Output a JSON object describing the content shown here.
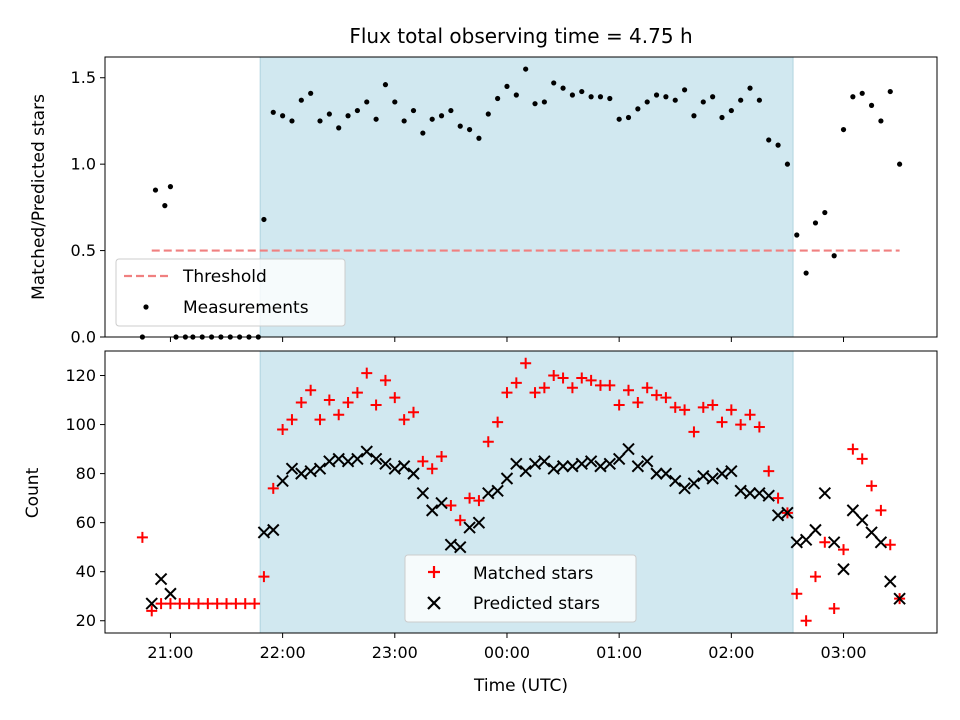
{
  "chart_data": [
    {
      "type": "scatter",
      "title": "Flux total observing time = 4.75 h",
      "ylabel": "Matched/Predicted stars",
      "xlabel": "",
      "ylim": [
        0,
        1.62
      ],
      "yticks": [
        0.0,
        0.5,
        1.0,
        1.5
      ],
      "ytick_labels": [
        "0.0",
        "0.5",
        "1.0",
        "1.5"
      ],
      "xlim": [
        "20:25",
        "03:50"
      ],
      "xticks": [
        "21:00",
        "22:00",
        "23:00",
        "00:00",
        "01:00",
        "02:00",
        "03:00"
      ],
      "shaded_interval": [
        "21:48",
        "02:33"
      ],
      "shade_color": "#d1e8f0",
      "threshold": {
        "name": "Threshold",
        "y": 0.5,
        "x_start": "20:50",
        "x_end": "03:30",
        "color": "#f08080"
      },
      "legend": {
        "position": "lower left",
        "entries": [
          "Threshold",
          "Measurements"
        ]
      },
      "series": [
        {
          "name": "Measurements",
          "color": "#000000",
          "marker": "dot",
          "points": [
            [
              "20:45",
              0.0
            ],
            [
              "20:52",
              0.85
            ],
            [
              "20:57",
              0.76
            ],
            [
              "21:00",
              0.87
            ],
            [
              "21:03",
              0.0
            ],
            [
              "21:08",
              0.0
            ],
            [
              "21:12",
              0.0
            ],
            [
              "21:17",
              0.0
            ],
            [
              "21:22",
              0.0
            ],
            [
              "21:27",
              0.0
            ],
            [
              "21:32",
              0.0
            ],
            [
              "21:37",
              0.0
            ],
            [
              "21:42",
              0.0
            ],
            [
              "21:47",
              0.0
            ],
            [
              "21:50",
              0.68
            ],
            [
              "21:55",
              1.3
            ],
            [
              "22:00",
              1.28
            ],
            [
              "22:05",
              1.25
            ],
            [
              "22:10",
              1.37
            ],
            [
              "22:15",
              1.41
            ],
            [
              "22:20",
              1.25
            ],
            [
              "22:25",
              1.29
            ],
            [
              "22:30",
              1.21
            ],
            [
              "22:35",
              1.28
            ],
            [
              "22:40",
              1.31
            ],
            [
              "22:45",
              1.36
            ],
            [
              "22:50",
              1.26
            ],
            [
              "22:55",
              1.46
            ],
            [
              "23:00",
              1.36
            ],
            [
              "23:05",
              1.25
            ],
            [
              "23:10",
              1.31
            ],
            [
              "23:15",
              1.18
            ],
            [
              "23:20",
              1.26
            ],
            [
              "23:25",
              1.28
            ],
            [
              "23:30",
              1.31
            ],
            [
              "23:35",
              1.22
            ],
            [
              "23:40",
              1.2
            ],
            [
              "23:45",
              1.15
            ],
            [
              "23:50",
              1.29
            ],
            [
              "23:55",
              1.38
            ],
            [
              "00:00",
              1.45
            ],
            [
              "00:05",
              1.4
            ],
            [
              "00:10",
              1.55
            ],
            [
              "00:15",
              1.35
            ],
            [
              "00:20",
              1.36
            ],
            [
              "00:25",
              1.47
            ],
            [
              "00:30",
              1.44
            ],
            [
              "00:35",
              1.4
            ],
            [
              "00:40",
              1.42
            ],
            [
              "00:45",
              1.39
            ],
            [
              "00:50",
              1.39
            ],
            [
              "00:55",
              1.38
            ],
            [
              "01:00",
              1.26
            ],
            [
              "01:05",
              1.27
            ],
            [
              "01:10",
              1.32
            ],
            [
              "01:15",
              1.36
            ],
            [
              "01:20",
              1.4
            ],
            [
              "01:25",
              1.39
            ],
            [
              "01:30",
              1.37
            ],
            [
              "01:35",
              1.43
            ],
            [
              "01:40",
              1.28
            ],
            [
              "01:45",
              1.36
            ],
            [
              "01:50",
              1.39
            ],
            [
              "01:55",
              1.27
            ],
            [
              "02:00",
              1.31
            ],
            [
              "02:05",
              1.37
            ],
            [
              "02:10",
              1.44
            ],
            [
              "02:15",
              1.37
            ],
            [
              "02:20",
              1.14
            ],
            [
              "02:25",
              1.11
            ],
            [
              "02:30",
              1.0
            ],
            [
              "02:35",
              0.59
            ],
            [
              "02:40",
              0.37
            ],
            [
              "02:45",
              0.66
            ],
            [
              "02:50",
              0.72
            ],
            [
              "02:55",
              0.47
            ],
            [
              "03:00",
              1.2
            ],
            [
              "03:05",
              1.39
            ],
            [
              "03:10",
              1.41
            ],
            [
              "03:15",
              1.34
            ],
            [
              "03:20",
              1.25
            ],
            [
              "03:25",
              1.42
            ],
            [
              "03:30",
              1.0
            ]
          ]
        }
      ]
    },
    {
      "type": "scatter",
      "title": "",
      "ylabel": "Count",
      "xlabel": "Time (UTC)",
      "ylim": [
        15,
        130
      ],
      "yticks": [
        20,
        40,
        60,
        80,
        100,
        120
      ],
      "ytick_labels": [
        "20",
        "40",
        "60",
        "80",
        "100",
        "120"
      ],
      "xlim": [
        "20:25",
        "03:50"
      ],
      "xticks": [
        "21:00",
        "22:00",
        "23:00",
        "00:00",
        "01:00",
        "02:00",
        "03:00"
      ],
      "xtick_labels": [
        "21:00",
        "22:00",
        "23:00",
        "00:00",
        "01:00",
        "02:00",
        "03:00"
      ],
      "shaded_interval": [
        "21:48",
        "02:33"
      ],
      "shade_color": "#d1e8f0",
      "legend": {
        "position": "lower center",
        "entries": [
          "Matched stars",
          "Predicted stars"
        ]
      },
      "series": [
        {
          "name": "Matched stars",
          "color": "#ff0000",
          "marker": "plus",
          "points": [
            [
              "20:45",
              54
            ],
            [
              "20:50",
              24
            ],
            [
              "20:55",
              27
            ],
            [
              "21:00",
              27
            ],
            [
              "21:05",
              27
            ],
            [
              "21:10",
              27
            ],
            [
              "21:15",
              27
            ],
            [
              "21:20",
              27
            ],
            [
              "21:25",
              27
            ],
            [
              "21:30",
              27
            ],
            [
              "21:35",
              27
            ],
            [
              "21:40",
              27
            ],
            [
              "21:45",
              27
            ],
            [
              "21:50",
              38
            ],
            [
              "21:55",
              74
            ],
            [
              "22:00",
              98
            ],
            [
              "22:05",
              102
            ],
            [
              "22:10",
              109
            ],
            [
              "22:15",
              114
            ],
            [
              "22:20",
              102
            ],
            [
              "22:25",
              110
            ],
            [
              "22:30",
              104
            ],
            [
              "22:35",
              109
            ],
            [
              "22:40",
              113
            ],
            [
              "22:45",
              121
            ],
            [
              "22:50",
              108
            ],
            [
              "22:55",
              118
            ],
            [
              "23:00",
              111
            ],
            [
              "23:05",
              102
            ],
            [
              "23:10",
              105
            ],
            [
              "23:15",
              85
            ],
            [
              "23:20",
              82
            ],
            [
              "23:25",
              87
            ],
            [
              "23:30",
              67
            ],
            [
              "23:35",
              61
            ],
            [
              "23:40",
              70
            ],
            [
              "23:45",
              69
            ],
            [
              "23:50",
              93
            ],
            [
              "23:55",
              101
            ],
            [
              "00:00",
              113
            ],
            [
              "00:05",
              117
            ],
            [
              "00:10",
              125
            ],
            [
              "00:15",
              113
            ],
            [
              "00:20",
              115
            ],
            [
              "00:25",
              120
            ],
            [
              "00:30",
              119
            ],
            [
              "00:35",
              115
            ],
            [
              "00:40",
              119
            ],
            [
              "00:45",
              118
            ],
            [
              "00:50",
              116
            ],
            [
              "00:55",
              116
            ],
            [
              "01:00",
              108
            ],
            [
              "01:05",
              114
            ],
            [
              "01:10",
              109
            ],
            [
              "01:15",
              115
            ],
            [
              "01:20",
              112
            ],
            [
              "01:25",
              111
            ],
            [
              "01:30",
              107
            ],
            [
              "01:35",
              106
            ],
            [
              "01:40",
              97
            ],
            [
              "01:45",
              107
            ],
            [
              "01:50",
              108
            ],
            [
              "01:55",
              101
            ],
            [
              "02:00",
              106
            ],
            [
              "02:05",
              100
            ],
            [
              "02:10",
              104
            ],
            [
              "02:15",
              99
            ],
            [
              "02:20",
              81
            ],
            [
              "02:25",
              70
            ],
            [
              "02:30",
              64
            ],
            [
              "02:35",
              31
            ],
            [
              "02:40",
              20
            ],
            [
              "02:45",
              38
            ],
            [
              "02:50",
              52
            ],
            [
              "02:55",
              25
            ],
            [
              "03:00",
              49
            ],
            [
              "03:05",
              90
            ],
            [
              "03:10",
              86
            ],
            [
              "03:15",
              75
            ],
            [
              "03:20",
              65
            ],
            [
              "03:25",
              51
            ],
            [
              "03:30",
              29
            ]
          ]
        },
        {
          "name": "Predicted stars",
          "color": "#000000",
          "marker": "x",
          "points": [
            [
              "20:50",
              27
            ],
            [
              "20:55",
              37
            ],
            [
              "21:00",
              31
            ],
            [
              "21:50",
              56
            ],
            [
              "21:55",
              57
            ],
            [
              "22:00",
              77
            ],
            [
              "22:05",
              82
            ],
            [
              "22:10",
              80
            ],
            [
              "22:15",
              81
            ],
            [
              "22:20",
              82
            ],
            [
              "22:25",
              85
            ],
            [
              "22:30",
              86
            ],
            [
              "22:35",
              85
            ],
            [
              "22:40",
              86
            ],
            [
              "22:45",
              89
            ],
            [
              "22:50",
              86
            ],
            [
              "22:55",
              84
            ],
            [
              "23:00",
              82
            ],
            [
              "23:05",
              83
            ],
            [
              "23:10",
              80
            ],
            [
              "23:15",
              72
            ],
            [
              "23:20",
              65
            ],
            [
              "23:25",
              68
            ],
            [
              "23:30",
              51
            ],
            [
              "23:35",
              50
            ],
            [
              "23:40",
              58
            ],
            [
              "23:45",
              60
            ],
            [
              "23:50",
              72
            ],
            [
              "23:55",
              73
            ],
            [
              "00:00",
              78
            ],
            [
              "00:05",
              84
            ],
            [
              "00:10",
              81
            ],
            [
              "00:15",
              84
            ],
            [
              "00:20",
              85
            ],
            [
              "00:25",
              82
            ],
            [
              "00:30",
              83
            ],
            [
              "00:35",
              83
            ],
            [
              "00:40",
              84
            ],
            [
              "00:45",
              85
            ],
            [
              "00:50",
              83
            ],
            [
              "00:55",
              84
            ],
            [
              "01:00",
              86
            ],
            [
              "01:05",
              90
            ],
            [
              "01:10",
              83
            ],
            [
              "01:15",
              85
            ],
            [
              "01:20",
              80
            ],
            [
              "01:25",
              80
            ],
            [
              "01:30",
              77
            ],
            [
              "01:35",
              74
            ],
            [
              "01:40",
              76
            ],
            [
              "01:45",
              79
            ],
            [
              "01:50",
              78
            ],
            [
              "01:55",
              80
            ],
            [
              "02:00",
              81
            ],
            [
              "02:05",
              73
            ],
            [
              "02:10",
              72
            ],
            [
              "02:15",
              72
            ],
            [
              "02:20",
              71
            ],
            [
              "02:25",
              63
            ],
            [
              "02:30",
              64
            ],
            [
              "02:35",
              52
            ],
            [
              "02:40",
              53
            ],
            [
              "02:45",
              57
            ],
            [
              "02:50",
              72
            ],
            [
              "02:55",
              52
            ],
            [
              "03:00",
              41
            ],
            [
              "03:05",
              65
            ],
            [
              "03:10",
              61
            ],
            [
              "03:15",
              56
            ],
            [
              "03:20",
              52
            ],
            [
              "03:25",
              36
            ],
            [
              "03:30",
              29
            ]
          ]
        }
      ]
    }
  ]
}
